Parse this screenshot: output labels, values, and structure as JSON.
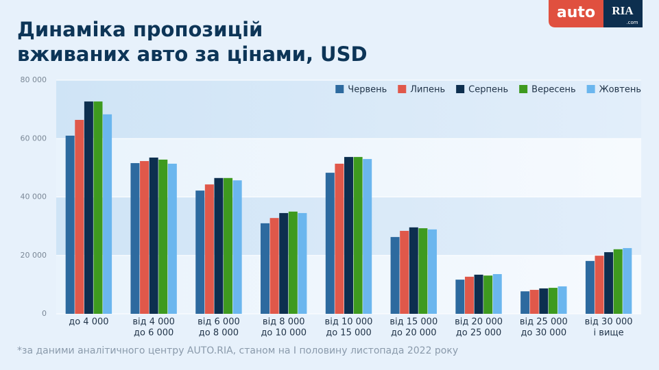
{
  "logo": {
    "left": "auto",
    "right": "RIA",
    "suffix": ".com"
  },
  "chart_data": {
    "type": "bar",
    "title": [
      "Динаміка пропозицій",
      "вживаних авто за цінами, USD"
    ],
    "categories": [
      [
        "до 4 000"
      ],
      [
        "від 4 000",
        "до 6 000"
      ],
      [
        "від 6 000",
        "до 8 000"
      ],
      [
        "від 8 000",
        "до 10 000"
      ],
      [
        "від 10 000",
        "до 15 000"
      ],
      [
        "від 15 000",
        "до 20 000"
      ],
      [
        "від 20 000",
        "до 25 000"
      ],
      [
        "від 25 000",
        "до 30 000"
      ],
      [
        "від 30 000",
        "і вище"
      ]
    ],
    "series": [
      {
        "name": "Червень",
        "color": "#2d6a9f",
        "values": [
          61000,
          51600,
          42200,
          31000,
          48300,
          26300,
          11700,
          7700,
          18100
        ]
      },
      {
        "name": "Липень",
        "color": "#e0584a",
        "values": [
          66400,
          52300,
          44300,
          32800,
          51400,
          28400,
          12700,
          8200,
          19900
        ]
      },
      {
        "name": "Серпень",
        "color": "#0d2f4f",
        "values": [
          72700,
          53500,
          46500,
          34500,
          53700,
          29600,
          13400,
          8700,
          21100
        ]
      },
      {
        "name": "Вересень",
        "color": "#3e9a1f",
        "values": [
          72700,
          52800,
          46500,
          35000,
          53700,
          29300,
          13100,
          8900,
          22100
        ]
      },
      {
        "name": "Жовтень",
        "color": "#6bb6ee",
        "values": [
          68300,
          51400,
          45700,
          34500,
          53000,
          28900,
          13600,
          9400,
          22500
        ]
      }
    ],
    "ylim": [
      0,
      80000
    ],
    "yticks": [
      {
        "value": 0,
        "label": "0"
      },
      {
        "value": 20000,
        "label": "20 000"
      },
      {
        "value": 40000,
        "label": "40 000"
      },
      {
        "value": 60000,
        "label": "60 000"
      },
      {
        "value": 80000,
        "label": "80 000"
      }
    ],
    "grid": true,
    "legend": "top-right",
    "footnote": "*за даними аналітичного центру AUTO.RIA, станом на І половину листопада 2022 року"
  }
}
